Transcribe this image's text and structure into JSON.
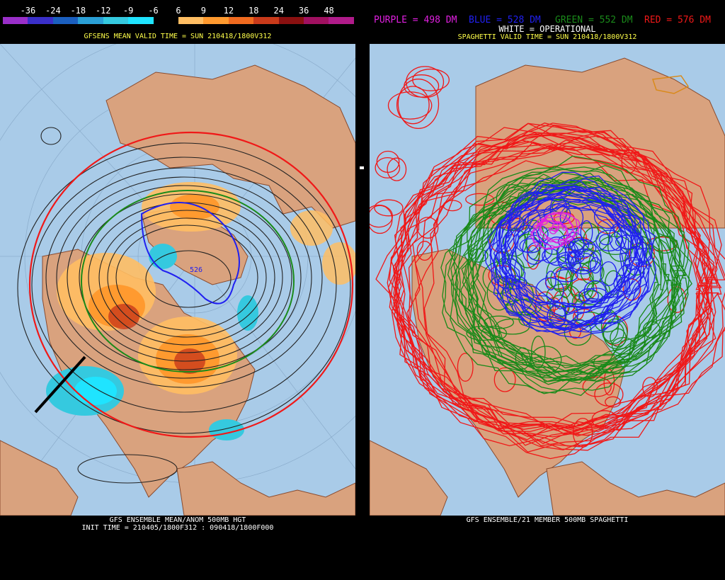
{
  "left": {
    "legend": {
      "labels": [
        "-36",
        "-24",
        "-18",
        "-12",
        "-9",
        "-6",
        "6",
        "9",
        "12",
        "18",
        "24",
        "36",
        "48"
      ],
      "colors": [
        "#9a2fc9",
        "#3a2fc9",
        "#1b5fbf",
        "#2a9fd6",
        "#35c9df",
        "#1fe4ff",
        "#000000",
        "#ffbe63",
        "#ff9a2f",
        "#f06a1f",
        "#c93a1a",
        "#8a1010",
        "#a01060",
        "#b01b8a"
      ]
    },
    "title": "GFSENS MEAN VALID TIME = SUN 210418/1800V312",
    "contour_label": "526",
    "footer1": "GFS ENSEMBLE MEAN/ANOM 500MB HGT",
    "footer2": "INIT TIME = 210405/1800F312 : 090418/1800F000"
  },
  "right": {
    "key": {
      "purple": "PURPLE = 498 DM",
      "blue": "BLUE = 528 DM",
      "green": "GREEN = 552 DM",
      "red": "RED = 576 DM",
      "white": "WHITE = OPERATIONAL"
    },
    "title": "SPAGHETTI VALID TIME = SUN 210418/1800V312",
    "footer1": "GFS ENSEMBLE/21 MEMBER 500MB SPAGHETTI"
  },
  "colors": {
    "ocean": "#a9cbe8",
    "land": "#d9a27e",
    "border": "#8a4b2e",
    "title_yellow": "#ffff4a",
    "purple": "#e020e0",
    "blue": "#2020f0",
    "green": "#1a8a1a",
    "red": "#f01818"
  }
}
